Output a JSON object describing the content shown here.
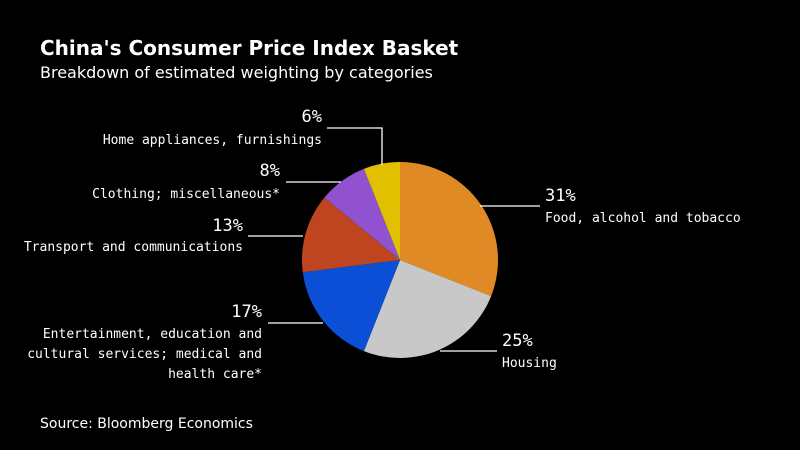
{
  "title": "China's Consumer Price Index Basket",
  "subtitle": "Breakdown of estimated weighting by categories",
  "source": "Source: Bloomberg Economics",
  "chart_data": {
    "type": "pie",
    "title": "China's Consumer Price Index Basket",
    "subtitle": "Breakdown of estimated weighting by categories",
    "unit": "%",
    "slices": [
      {
        "name": "food-alcohol-tobacco",
        "label_lines": [
          "Food, alcohol and tobacco"
        ],
        "value": 31,
        "value_label": "31%",
        "color": "#e08a26"
      },
      {
        "name": "housing",
        "label_lines": [
          "Housing"
        ],
        "value": 25,
        "value_label": "25%",
        "color": "#c8c8c8"
      },
      {
        "name": "entertainment-education-medical",
        "label_lines": [
          "Entertainment, education and",
          "cultural services; medical and",
          "health care*"
        ],
        "value": 17,
        "value_label": "17%",
        "color": "#0a4fd6"
      },
      {
        "name": "transport-communications",
        "label_lines": [
          "Transport and communications"
        ],
        "value": 13,
        "value_label": "13%",
        "color": "#bf4520"
      },
      {
        "name": "clothing-miscellaneous",
        "label_lines": [
          "Clothing; miscellaneous*"
        ],
        "value": 8,
        "value_label": "8%",
        "color": "#9052cf"
      },
      {
        "name": "home-appliances-furnishings",
        "label_lines": [
          "Home appliances, furnishings"
        ],
        "value": 6,
        "value_label": "6%",
        "color": "#e0c000"
      }
    ]
  }
}
